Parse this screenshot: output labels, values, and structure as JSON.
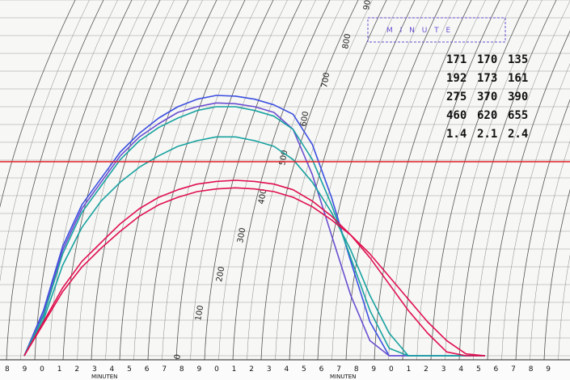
{
  "chart_data": {
    "type": "line",
    "title": "",
    "xlabel": "MINUTEN",
    "ylabel": "",
    "xlim": [
      0,
      24
    ],
    "ylim": [
      0,
      900
    ],
    "grid": true,
    "bottom_ticks": [
      "8",
      "9",
      "0",
      "1",
      "2",
      "3",
      "4",
      "5",
      "6",
      "7",
      "8",
      "9",
      "0",
      "1",
      "2",
      "3",
      "4",
      "5",
      "6",
      "7",
      "8",
      "9",
      "0",
      "1",
      "2",
      "3",
      "4",
      "5",
      "6",
      "7",
      "8",
      "9"
    ],
    "arc_labels": [
      "0",
      "100",
      "200",
      "300",
      "400",
      "500",
      "600",
      "700",
      "800",
      "900"
    ],
    "reference_line": {
      "y": 500,
      "color": "#e0202a"
    },
    "stamp_text": "M I N U T E",
    "handwritten_table": [
      [
        "171",
        "170",
        "135"
      ],
      [
        "192",
        "173",
        "161"
      ],
      [
        "275",
        "370",
        "390"
      ],
      [
        "460",
        "620",
        "655"
      ],
      [
        "1.4",
        "2.1",
        "2.4"
      ]
    ],
    "x": [
      0,
      1,
      2,
      3,
      4,
      5,
      6,
      7,
      8,
      9,
      10,
      11,
      12,
      13,
      14,
      15,
      16,
      17,
      18,
      19,
      20,
      21,
      22,
      23,
      24
    ],
    "series": [
      {
        "color": "#3b4fe0",
        "values": [
          0,
          120,
          290,
          400,
          470,
          540,
          590,
          630,
          660,
          680,
          690,
          688,
          680,
          665,
          640,
          560,
          420,
          250,
          90,
          0,
          0,
          0,
          0,
          0,
          0
        ]
      },
      {
        "color": "#6a4fd1",
        "values": [
          0,
          110,
          280,
          390,
          460,
          530,
          580,
          615,
          645,
          660,
          670,
          668,
          660,
          645,
          600,
          480,
          320,
          160,
          40,
          0,
          0,
          0,
          0,
          0,
          0
        ]
      },
      {
        "color": "#17a2a0",
        "values": [
          0,
          105,
          270,
          380,
          450,
          520,
          570,
          605,
          630,
          650,
          660,
          660,
          650,
          635,
          600,
          520,
          400,
          260,
          120,
          20,
          0,
          0,
          0,
          0,
          0
        ]
      },
      {
        "color": "#17a2a0",
        "values": [
          0,
          95,
          240,
          340,
          410,
          460,
          500,
          530,
          555,
          570,
          580,
          580,
          570,
          555,
          520,
          460,
          380,
          280,
          160,
          60,
          0,
          0,
          0,
          0,
          0
        ]
      },
      {
        "color": "#e01050",
        "values": [
          0,
          90,
          180,
          250,
          300,
          350,
          390,
          420,
          440,
          455,
          462,
          465,
          462,
          455,
          440,
          410,
          370,
          320,
          260,
          190,
          120,
          60,
          10,
          0,
          0
        ]
      },
      {
        "color": "#e01050",
        "values": [
          0,
          85,
          170,
          235,
          285,
          330,
          370,
          400,
          420,
          435,
          442,
          445,
          442,
          435,
          420,
          395,
          360,
          320,
          270,
          210,
          150,
          90,
          40,
          5,
          0
        ]
      }
    ]
  }
}
